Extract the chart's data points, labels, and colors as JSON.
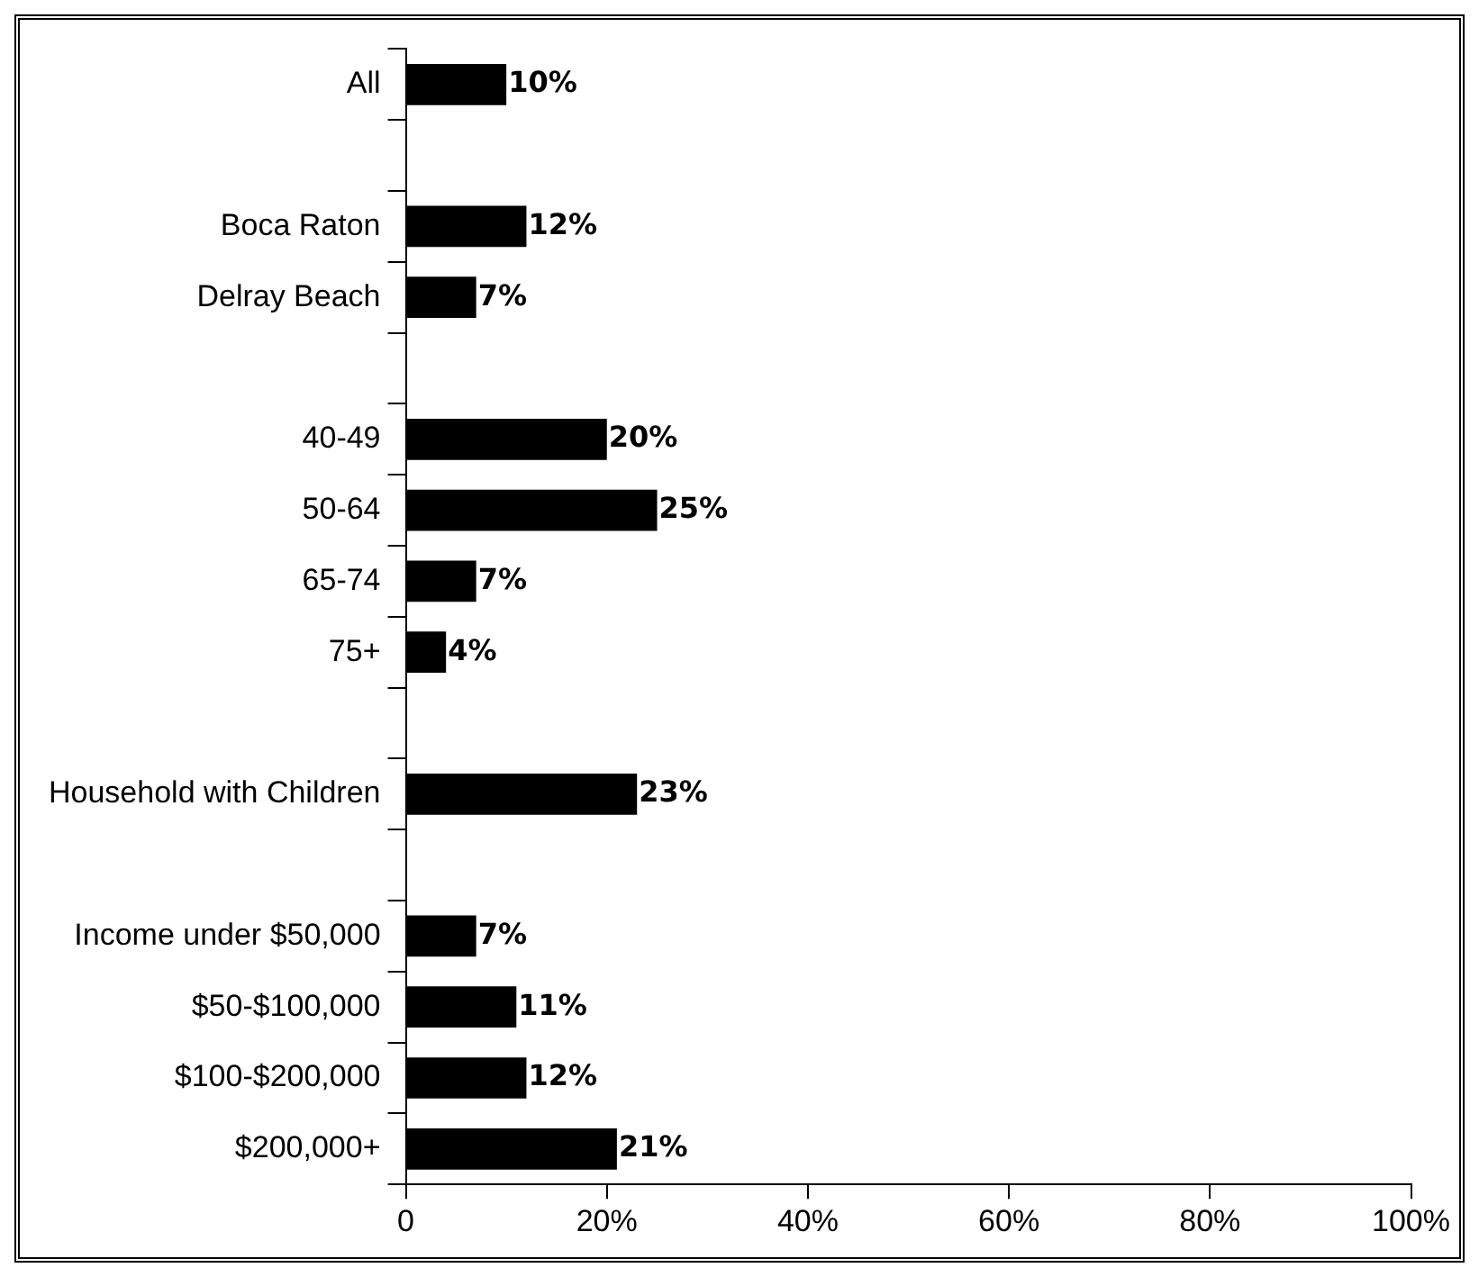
{
  "chart_data": {
    "type": "bar",
    "orientation": "horizontal",
    "categories": [
      "All",
      null,
      "Boca Raton",
      "Delray Beach",
      null,
      "40-49",
      "50-64",
      "65-74",
      "75+",
      null,
      "Household with Children",
      null,
      "Income under $50,000",
      "$50-$100,000",
      "$100-$200,000",
      "$200,000+"
    ],
    "values": [
      10,
      null,
      12,
      7,
      null,
      20,
      25,
      7,
      4,
      null,
      23,
      null,
      7,
      11,
      12,
      21
    ],
    "value_labels": [
      "10%",
      null,
      "12%",
      "7%",
      null,
      "20%",
      "25%",
      "7%",
      "4%",
      null,
      "23%",
      null,
      "7%",
      "11%",
      "12%",
      "21%"
    ],
    "color": "#000000",
    "xlim": [
      0,
      100
    ],
    "xticks": [
      0,
      {
        "value": 20,
        "label": "20%"
      },
      {
        "value": 40,
        "label": "40%"
      },
      {
        "value": 60,
        "label": "60%"
      },
      {
        "value": 80,
        "label": "80%"
      },
      {
        "value": 100,
        "label": "100%"
      }
    ],
    "grid": false,
    "legend": false
  }
}
